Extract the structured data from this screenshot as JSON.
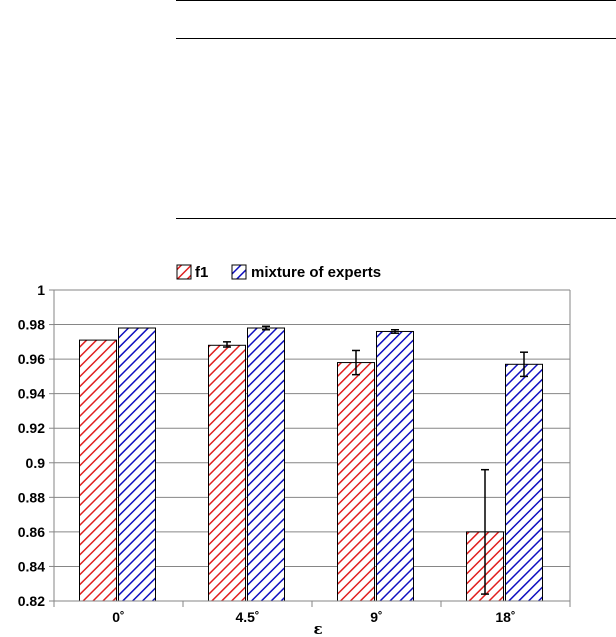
{
  "chart_data": {
    "type": "bar",
    "title": "",
    "xlabel": "ε",
    "ylabel": "",
    "ylim": [
      0.82,
      1
    ],
    "yticks": [
      "0.82",
      "0.84",
      "0.86",
      "0.88",
      "0.9",
      "0.92",
      "0.94",
      "0.96",
      "0.98",
      "1"
    ],
    "categories": [
      "0˚",
      "4.5˚",
      "9˚",
      "18˚"
    ],
    "grid": true,
    "legend_position": "top",
    "series": [
      {
        "name": "f1",
        "color": "#e02020",
        "pattern": "diagonal-hatch",
        "values": [
          0.971,
          0.968,
          0.958,
          0.86
        ],
        "error_low": [
          0.971,
          0.967,
          0.951,
          0.824
        ],
        "error_high": [
          0.971,
          0.97,
          0.965,
          0.896
        ]
      },
      {
        "name": "mixture of experts",
        "color": "#1010c0",
        "pattern": "diagonal-hatch",
        "values": [
          0.978,
          0.978,
          0.976,
          0.957
        ],
        "error_low": [
          0.978,
          0.977,
          0.975,
          0.95
        ],
        "error_high": [
          0.978,
          0.979,
          0.977,
          0.964
        ]
      }
    ]
  }
}
